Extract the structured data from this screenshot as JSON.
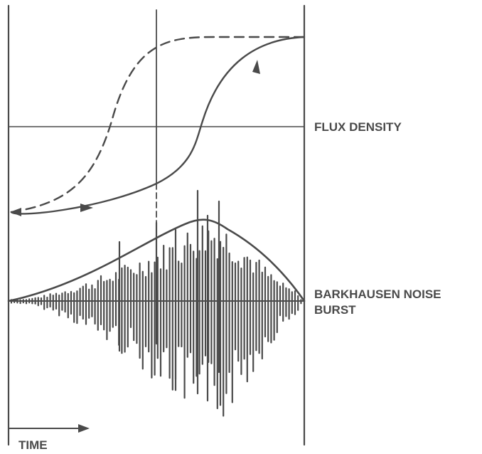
{
  "labels": {
    "flux_density": "FLUX DENSITY",
    "barkhausen_line1": "BARKHAUSEN NOISE",
    "barkhausen_line2": "BURST",
    "time": "TIME"
  },
  "colors": {
    "ink": "#4a4a4a",
    "background": "#ffffff"
  }
}
